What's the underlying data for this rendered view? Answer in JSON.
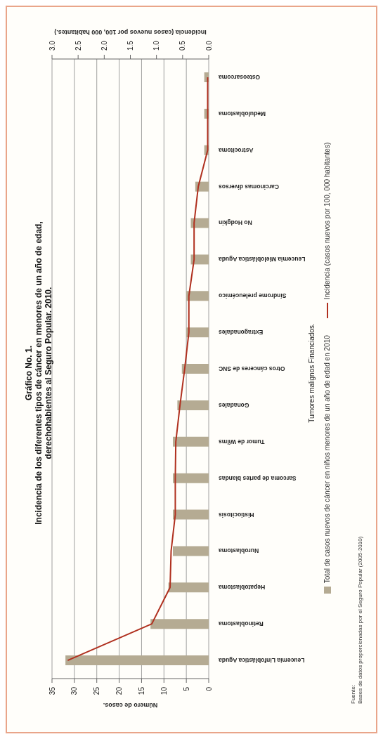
{
  "chart_data": {
    "type": "bar",
    "orientation": "horizontal",
    "title": "Gráfico No. 1.\nIncidencia de los diferentes tipos de cáncer en menores de un año de edad,\nderechohabientes al Seguro Popular. 2010.",
    "xlabel": "Número de casos.",
    "x2label": "Incidencia (casos nuevos por 100, 000 habitantes.)",
    "ylabel": "Tumores malignos Financiados.",
    "categories": [
      "Osteosarcoma",
      "Meduloblastoma",
      "Astrocitoma",
      "Carcinomas diversos",
      "No Hodgkin",
      "Leucemia Mieloblástica Aguda",
      "Síndrome preleucémico",
      "Extragonadales",
      "Otros cánceres de SNC",
      "Gonadales",
      "Tumor de Wilms",
      "Sarcoma de partes blandas",
      "Histiocitosis",
      "Nuroblastoma",
      "Hepatoblastoma",
      "Retinoblastoma",
      "Leucemia Linfoblástica Aguda"
    ],
    "series": [
      {
        "name": "Total de casos nuevos de cáncer en niños menores de un año de edad en 2010",
        "color": "#b5ab93",
        "values": [
          1,
          1,
          1,
          3,
          4,
          4,
          5,
          5,
          6,
          7,
          8,
          8,
          8,
          8,
          9,
          13,
          32
        ]
      },
      {
        "name": "Incidencia (casos nuevos por 100, 000 habitantes)",
        "type": "line",
        "axis": "x2",
        "color": "#b0301f",
        "values": [
          0.02,
          0.02,
          0.02,
          0.2,
          0.28,
          0.28,
          0.38,
          0.38,
          0.46,
          0.55,
          0.63,
          0.64,
          0.64,
          0.72,
          0.74,
          1.09,
          2.7
        ]
      }
    ],
    "xlim": [
      35,
      0
    ],
    "xticks": [
      35,
      30,
      25,
      20,
      15,
      10,
      5,
      0
    ],
    "x2lim": [
      3,
      0
    ],
    "x2ticks": [
      {
        "value": 3,
        "label": "3.0"
      },
      {
        "value": 2.5,
        "label": "2.5"
      },
      {
        "value": 2,
        "label": "2.0"
      },
      {
        "value": 1.5,
        "label": "1.5"
      },
      {
        "value": 1,
        "label": "1.0"
      },
      {
        "value": 0.5,
        "label": "0.5"
      },
      {
        "value": 0,
        "label": "0.0"
      }
    ],
    "grid": "x",
    "legend": "right",
    "marker": "none",
    "line_style": "solid",
    "annotations": [
      "Fuente:",
      "Bases de datos proporcionadas por el Seguro Popular (2005-2010)"
    ]
  }
}
